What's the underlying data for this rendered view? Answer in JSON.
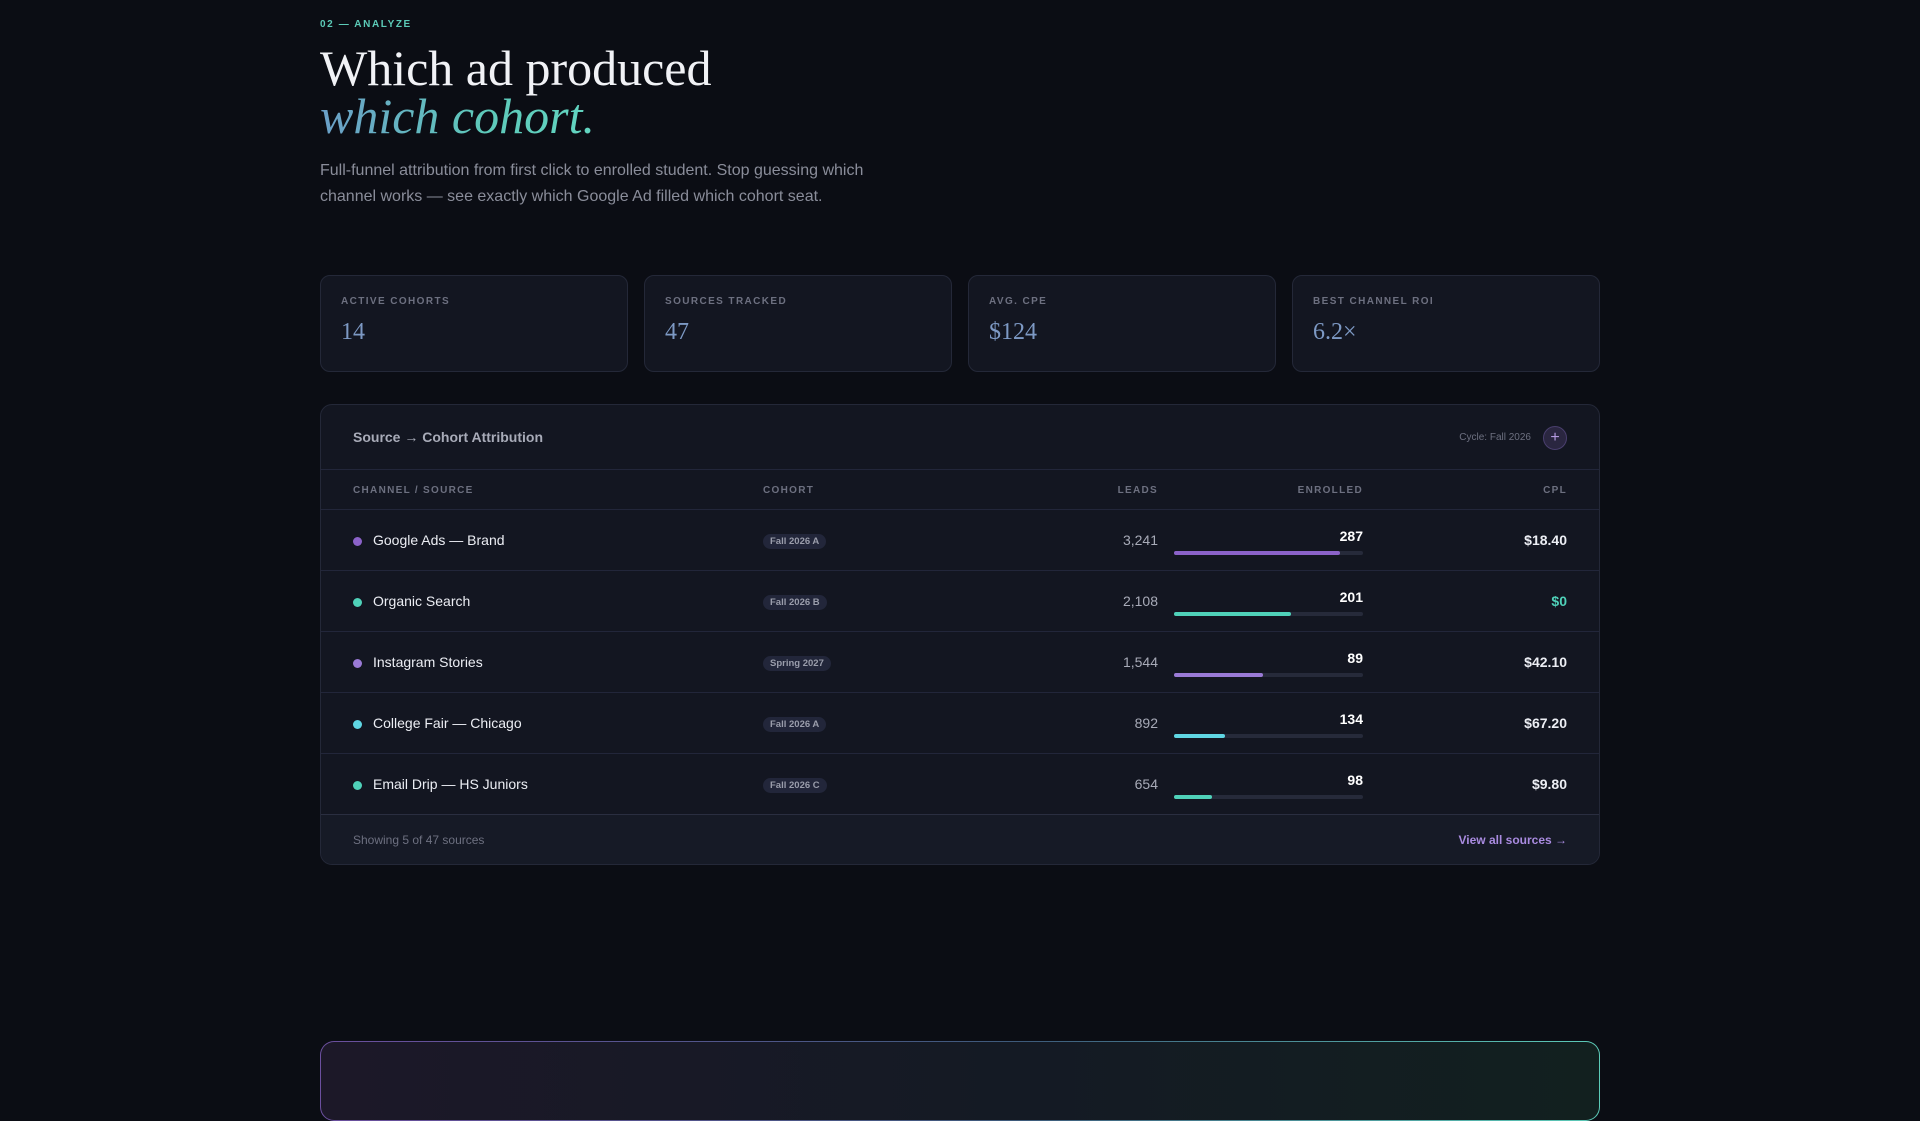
{
  "section": {
    "eyebrow": "02 — ANALYZE",
    "title_line1": "Which ad produced",
    "title_line2": "which cohort.",
    "description": "Full-funnel attribution from first click to enrolled student. Stop guessing which channel works — see exactly which Google Ad filled which cohort seat."
  },
  "stats": [
    {
      "label": "ACTIVE COHORTS",
      "value": "14"
    },
    {
      "label": "SOURCES TRACKED",
      "value": "47"
    },
    {
      "label": "AVG. CPE",
      "value": "$124"
    },
    {
      "label": "BEST CHANNEL ROI",
      "value": "6.2×"
    }
  ],
  "table": {
    "title": "Source → Cohort Attribution",
    "cycle": "Cycle: Fall 2026",
    "add_icon": "plus-icon",
    "columns": {
      "source": "CHANNEL / SOURCE",
      "cohort": "COHORT",
      "leads": "LEADS",
      "enrolled": "ENROLLED",
      "cpl": "CPL"
    },
    "rows": [
      {
        "source": "Google Ads — Brand",
        "cohort": "Fall 2026 A",
        "leads": "3,241",
        "enrolled": "287",
        "enrolled_fill": 0.88,
        "cpl": "$18.40",
        "dot_color": "#8b62c9",
        "bar_color": "#8b62c9",
        "cpl_color": "#eceef4"
      },
      {
        "source": "Organic Search",
        "cohort": "Fall 2026 B",
        "leads": "2,108",
        "enrolled": "201",
        "enrolled_fill": 0.62,
        "cpl": "$0",
        "dot_color": "#4fd1b9",
        "bar_color": "#4fd1b9",
        "cpl_color": "#4fd1b9"
      },
      {
        "source": "Instagram Stories",
        "cohort": "Spring 2027",
        "leads": "1,544",
        "enrolled": "89",
        "enrolled_fill": 0.47,
        "cpl": "$42.10",
        "dot_color": "#9a7ad6",
        "bar_color": "#9a7ad6",
        "cpl_color": "#eceef4"
      },
      {
        "source": "College Fair — Chicago",
        "cohort": "Fall 2026 A",
        "leads": "892",
        "enrolled": "134",
        "enrolled_fill": 0.27,
        "cpl": "$67.20",
        "dot_color": "#5fd6e3",
        "bar_color": "#5fd6e3",
        "cpl_color": "#eceef4"
      },
      {
        "source": "Email Drip — HS Juniors",
        "cohort": "Fall 2026 C",
        "leads": "654",
        "enrolled": "98",
        "enrolled_fill": 0.2,
        "cpl": "$9.80",
        "dot_color": "#4fd1b9",
        "bar_color": "#4fd1b9",
        "cpl_color": "#eceef4"
      }
    ],
    "footer_left": "Showing 5 of 47 sources",
    "footer_link": "View all sources →"
  }
}
